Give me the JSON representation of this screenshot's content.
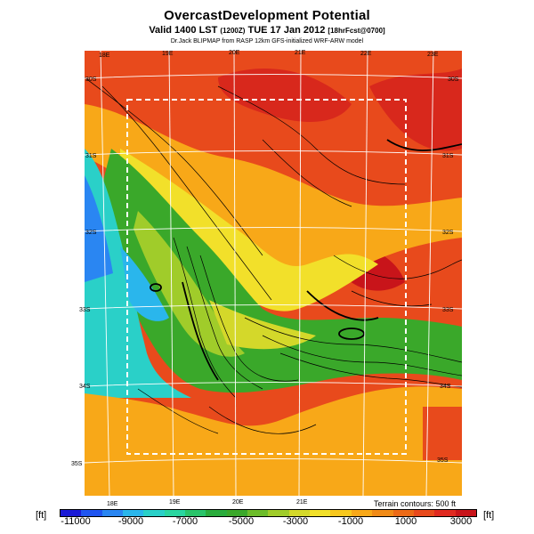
{
  "title": "OvercastDevelopment Potential",
  "subtitle_main": "Valid 1400 LST",
  "subtitle_small1": "(1200Z)",
  "subtitle_date": "TUE 17 Jan 2012",
  "subtitle_small2": "[18hrFcst@0700]",
  "credit": "Dr.Jack BLIPMAP from RASP 12km GFS-initialized WRF-ARW model",
  "lon_top": [
    "18E",
    "19E",
    "20E",
    "21E",
    "22E",
    "23E"
  ],
  "lon_bottom": [
    "18E",
    "19E",
    "20E",
    "21E"
  ],
  "lat_left": [
    "30S",
    "31S",
    "32S",
    "33S",
    "34S",
    "35S"
  ],
  "lat_right": [
    "30S",
    "31S",
    "32S",
    "33S",
    "34S",
    "35S"
  ],
  "terrain_note": "Terrain contours: 500 ft",
  "unit_left": "[ft]",
  "unit_right": "[ft]",
  "colorbar_labels": [
    "-11000",
    "-9000",
    "-7000",
    "-5000",
    "-3000",
    "-1000",
    "1000",
    "3000"
  ],
  "colorbar_colors": [
    "#1a1ad6",
    "#1f55f0",
    "#2a86f2",
    "#2ab6ec",
    "#2ad0c8",
    "#2ad6a0",
    "#2ac46a",
    "#2aac3c",
    "#3aa82a",
    "#6cbc2a",
    "#a0cc2a",
    "#d4d82a",
    "#f2e02a",
    "#f8c81e",
    "#f8a818",
    "#f08a16",
    "#ec6a16",
    "#e84a1c",
    "#e02a20",
    "#c8141a"
  ]
}
